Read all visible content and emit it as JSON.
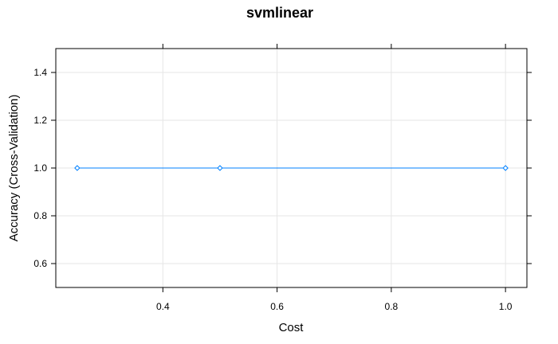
{
  "chart_data": {
    "type": "line",
    "title": "svmlinear",
    "xlabel": "Cost",
    "ylabel": "Accuracy (Cross-Validation)",
    "xlim": [
      0.2125,
      1.0375
    ],
    "ylim": [
      0.5,
      1.5
    ],
    "x_ticks": [
      0.4,
      0.6,
      0.8,
      1.0
    ],
    "x_tick_labels": [
      "0.4",
      "0.6",
      "0.8",
      "1.0"
    ],
    "y_ticks": [
      0.6,
      0.8,
      1.0,
      1.2,
      1.4
    ],
    "y_tick_labels": [
      "0.6",
      "0.8",
      "1.0",
      "1.2",
      "1.4"
    ],
    "grid": true,
    "series": [
      {
        "x": [
          0.25,
          0.5,
          1.0
        ],
        "y": [
          1.0,
          1.0,
          1.0
        ],
        "color": "#0080ff",
        "marker": "diamond"
      }
    ]
  }
}
